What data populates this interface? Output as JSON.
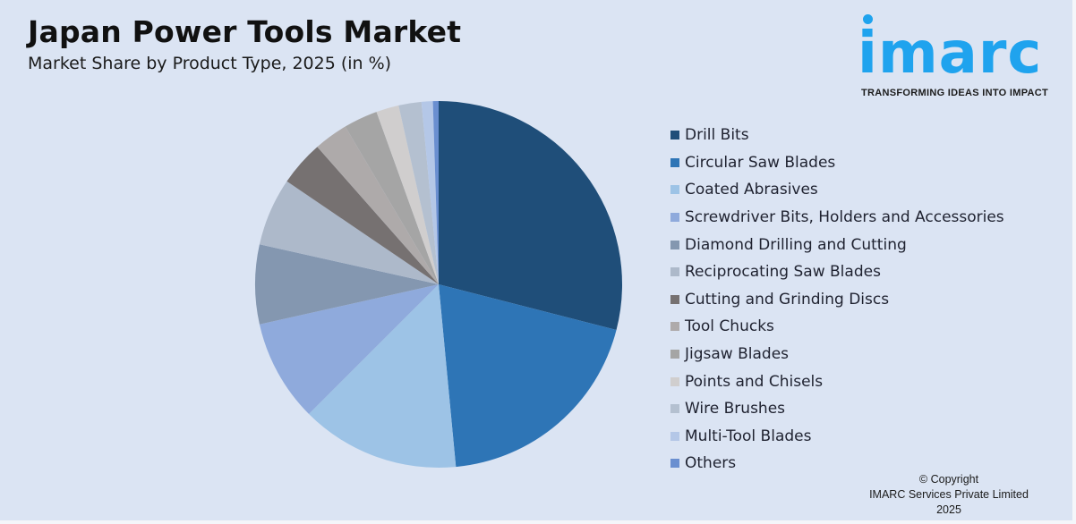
{
  "header": {
    "title": "Japan Power Tools Market",
    "subtitle": "Market Share by Product Type, 2025 (in %)"
  },
  "logo": {
    "wordmark": "imarc",
    "tagline": "TRANSFORMING IDEAS INTO IMPACT",
    "color": "#1fa3ee"
  },
  "footer": {
    "line1": "© Copyright",
    "line2": "IMARC Services Private Limited 2025"
  },
  "chart_data": {
    "type": "pie",
    "title": "Japan Power Tools Market",
    "subtitle": "Market Share by Product Type, 2025 (in %)",
    "legend_position": "right",
    "start_angle": "12 o'clock",
    "direction": "clockwise",
    "categories": [
      "Drill Bits",
      "Circular Saw Blades",
      "Coated Abrasives",
      "Screwdriver Bits, Holders and Accessories",
      "Diamond Drilling and Cutting",
      "Reciprocating Saw Blades",
      "Cutting and Grinding Discs",
      "Tool Chucks",
      "Jigsaw Blades",
      "Points and Chisels",
      "Wire Brushes",
      "Multi-Tool Blades",
      "Others"
    ],
    "values": [
      29,
      19.5,
      14,
      9,
      7,
      6,
      4,
      3,
      3,
      2,
      2,
      1,
      0.5
    ],
    "colors": [
      "#1f4e79",
      "#2e75b6",
      "#9dc3e6",
      "#8faadc",
      "#8497b0",
      "#adb9ca",
      "#767171",
      "#aeaaaa",
      "#a5a5a5",
      "#d0cece",
      "#b4c0d0",
      "#b4c7e7",
      "#6a8fd0"
    ]
  }
}
